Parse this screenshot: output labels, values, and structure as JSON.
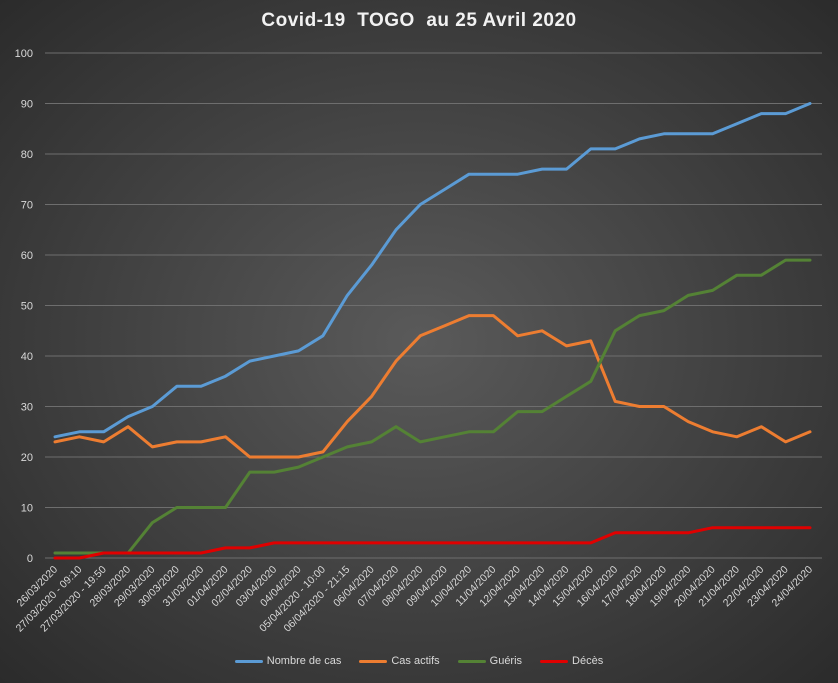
{
  "chart_data": {
    "type": "line",
    "title": "Covid-19  TOGO  au 25 Avril 2020",
    "xlabel": "",
    "ylabel": "",
    "ylim": [
      0,
      100
    ],
    "yticks": [
      "0",
      "10",
      "20",
      "30",
      "40",
      "50",
      "60",
      "70",
      "80",
      "90",
      "100"
    ],
    "grid": true,
    "legend_position": "bottom",
    "categories": [
      "26/03/2020",
      "27/03/2020 - 09:10",
      "27/03/2020 - 19:50",
      "28/03/2020",
      "29/03/2020",
      "30/03/2020",
      "31/03/2020",
      "01/04/2020",
      "02/04/2020",
      "03/04/2020",
      "04/04/2020",
      "05/04/2020 - 10:00",
      "06/04/2020 - 21:15",
      "06/04/2020",
      "07/04/2020",
      "08/04/2020",
      "09/04/2020",
      "10/04/2020",
      "11/04/2020",
      "12/04/2020",
      "13/04/2020",
      "14/04/2020",
      "15/04/2020",
      "16/04/2020",
      "17/04/2020",
      "18/04/2020",
      "19/04/2020",
      "20/04/2020",
      "21/04/2020",
      "22/04/2020",
      "23/04/2020",
      "24/04/2020"
    ],
    "series": [
      {
        "name": "Nombre de cas",
        "color": "#5b9bd5",
        "values": [
          24,
          25,
          25,
          28,
          30,
          34,
          34,
          36,
          39,
          40,
          41,
          44,
          52,
          58,
          65,
          70,
          73,
          76,
          76,
          76,
          77,
          77,
          81,
          81,
          83,
          84,
          84,
          84,
          86,
          88,
          88,
          90
        ]
      },
      {
        "name": "Cas actifs",
        "color": "#ed7d31",
        "values": [
          23,
          24,
          23,
          26,
          22,
          23,
          23,
          24,
          20,
          20,
          20,
          21,
          27,
          32,
          39,
          44,
          46,
          48,
          48,
          44,
          45,
          42,
          43,
          31,
          30,
          30,
          27,
          25,
          24,
          26,
          23,
          25
        ]
      },
      {
        "name": "Guéris",
        "color": "#548235",
        "values": [
          1,
          1,
          1,
          1,
          7,
          10,
          10,
          10,
          17,
          17,
          18,
          20,
          22,
          23,
          26,
          23,
          24,
          25,
          25,
          29,
          29,
          32,
          35,
          45,
          48,
          49,
          52,
          53,
          56,
          56,
          59,
          59
        ]
      },
      {
        "name": "Décès",
        "color": "#e00000",
        "values": [
          0,
          0,
          1,
          1,
          1,
          1,
          1,
          2,
          2,
          3,
          3,
          3,
          3,
          3,
          3,
          3,
          3,
          3,
          3,
          3,
          3,
          3,
          3,
          5,
          5,
          5,
          5,
          6,
          6,
          6,
          6,
          6
        ]
      }
    ]
  }
}
